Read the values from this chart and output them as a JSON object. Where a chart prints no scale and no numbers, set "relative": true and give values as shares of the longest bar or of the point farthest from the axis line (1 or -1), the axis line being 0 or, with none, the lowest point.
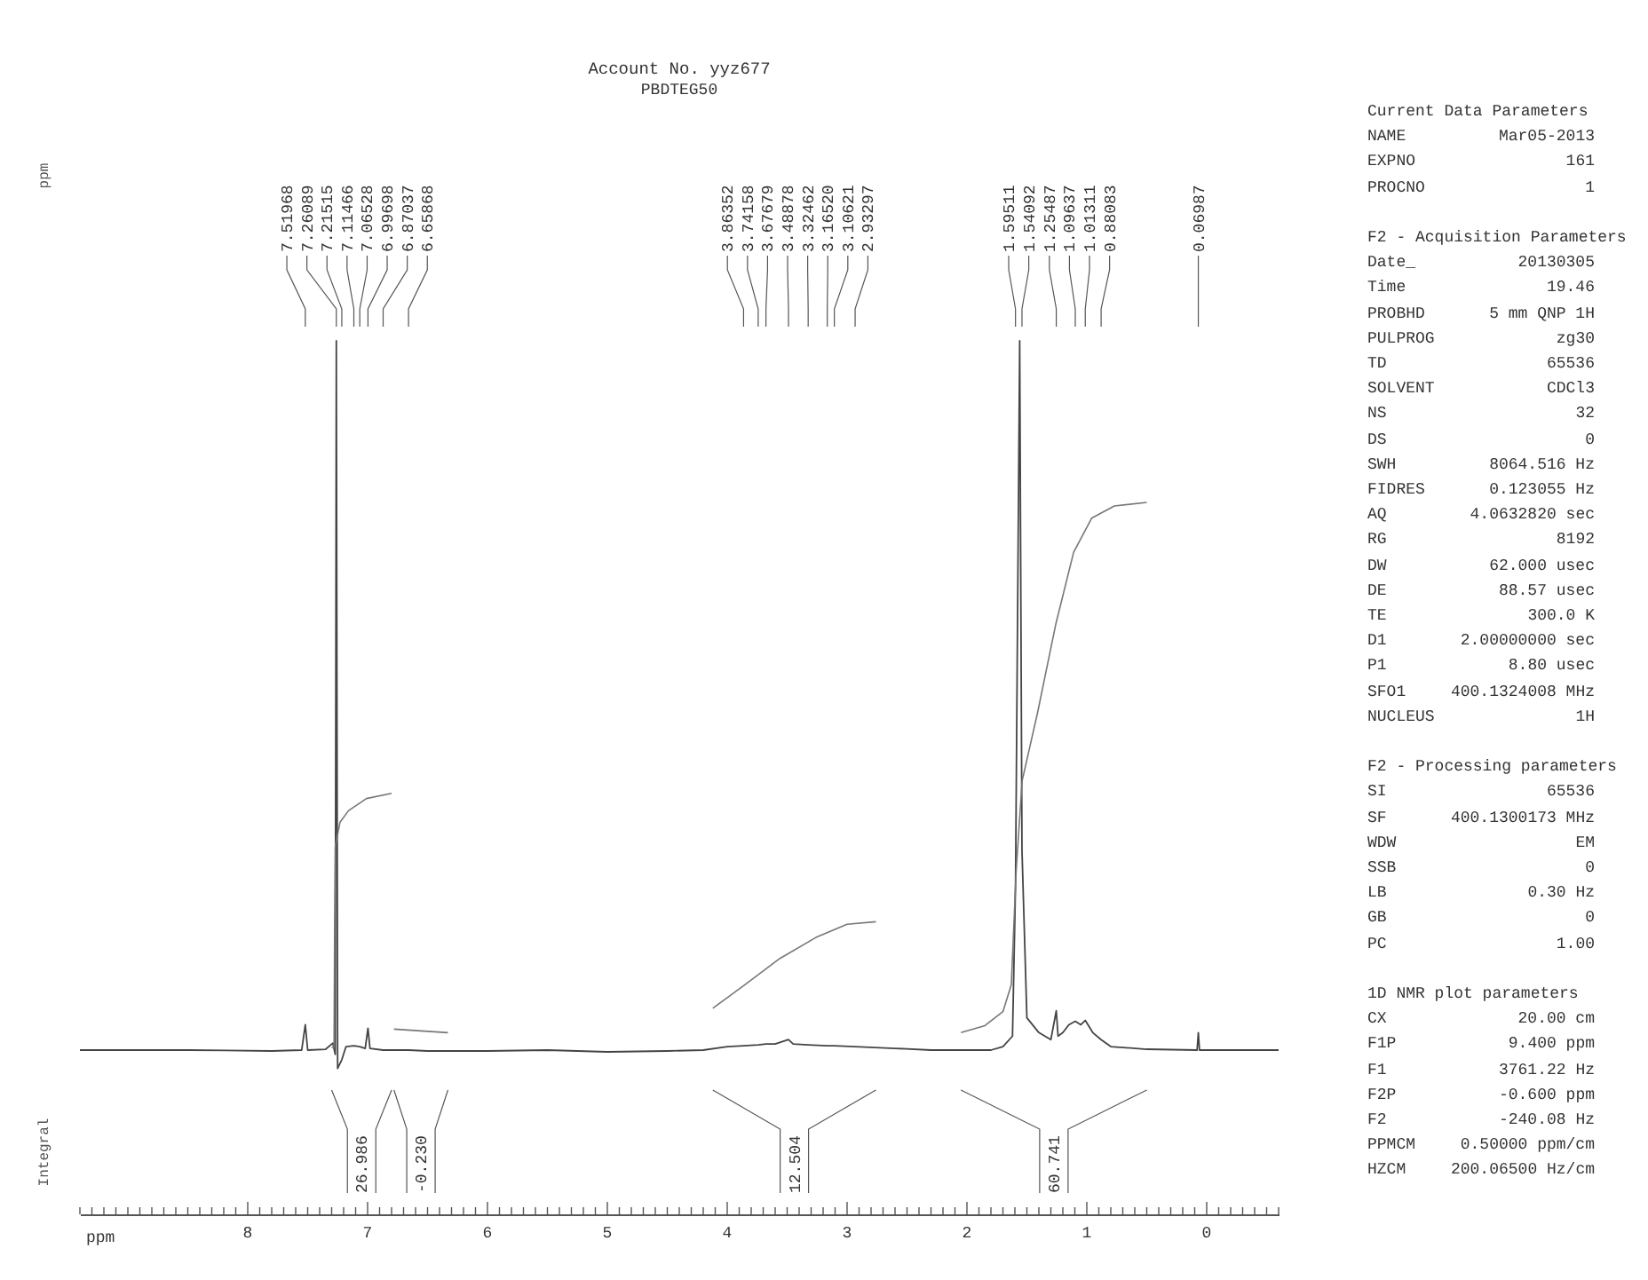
{
  "chart_data": {
    "type": "line",
    "relative": true,
    "title": "Account No. yyz677",
    "subtitle": "PBDTEG50",
    "xlabel": "ppm",
    "xlim": [
      9.4,
      -0.6
    ],
    "xticks": [
      {
        "value": 9.4,
        "label": null
      },
      {
        "value": 9.3,
        "label": null
      },
      {
        "value": 9.2,
        "label": null
      },
      {
        "value": 9.1,
        "label": null
      },
      {
        "value": 9,
        "label": null
      },
      {
        "value": 8.9,
        "label": null
      },
      {
        "value": 8.8,
        "label": null
      },
      {
        "value": 8.7,
        "label": null
      },
      {
        "value": 8.6,
        "label": null
      },
      {
        "value": 8.5,
        "label": null
      },
      {
        "value": 8.4,
        "label": null
      },
      {
        "value": 8.3,
        "label": null
      },
      {
        "value": 8.2,
        "label": null
      },
      {
        "value": 8.1,
        "label": null
      },
      8,
      {
        "value": 7.9,
        "label": null
      },
      {
        "value": 7.8,
        "label": null
      },
      {
        "value": 7.7,
        "label": null
      },
      {
        "value": 7.6,
        "label": null
      },
      {
        "value": 7.5,
        "label": null
      },
      {
        "value": 7.4,
        "label": null
      },
      {
        "value": 7.3,
        "label": null
      },
      {
        "value": 7.2,
        "label": null
      },
      {
        "value": 7.1,
        "label": null
      },
      7,
      {
        "value": 6.9,
        "label": null
      },
      {
        "value": 6.8,
        "label": null
      },
      {
        "value": 6.7,
        "label": null
      },
      {
        "value": 6.6,
        "label": null
      },
      {
        "value": 6.5,
        "label": null
      },
      {
        "value": 6.4,
        "label": null
      },
      {
        "value": 6.3,
        "label": null
      },
      {
        "value": 6.2,
        "label": null
      },
      {
        "value": 6.1,
        "label": null
      },
      6,
      {
        "value": 5.9,
        "label": null
      },
      {
        "value": 5.8,
        "label": null
      },
      {
        "value": 5.7,
        "label": null
      },
      {
        "value": 5.6,
        "label": null
      },
      {
        "value": 5.5,
        "label": null
      },
      {
        "value": 5.4,
        "label": null
      },
      {
        "value": 5.3,
        "label": null
      },
      {
        "value": 5.2,
        "label": null
      },
      {
        "value": 5.1,
        "label": null
      },
      5,
      {
        "value": 4.9,
        "label": null
      },
      {
        "value": 4.8,
        "label": null
      },
      {
        "value": 4.7,
        "label": null
      },
      {
        "value": 4.6,
        "label": null
      },
      {
        "value": 4.5,
        "label": null
      },
      {
        "value": 4.4,
        "label": null
      },
      {
        "value": 4.3,
        "label": null
      },
      {
        "value": 4.2,
        "label": null
      },
      {
        "value": 4.1,
        "label": null
      },
      4,
      {
        "value": 3.9,
        "label": null
      },
      {
        "value": 3.8,
        "label": null
      },
      {
        "value": 3.7,
        "label": null
      },
      {
        "value": 3.6,
        "label": null
      },
      {
        "value": 3.5,
        "label": null
      },
      {
        "value": 3.4,
        "label": null
      },
      {
        "value": 3.3,
        "label": null
      },
      {
        "value": 3.2,
        "label": null
      },
      {
        "value": 3.1,
        "label": null
      },
      3,
      {
        "value": 2.9,
        "label": null
      },
      {
        "value": 2.8,
        "label": null
      },
      {
        "value": 2.7,
        "label": null
      },
      {
        "value": 2.6,
        "label": null
      },
      {
        "value": 2.5,
        "label": null
      },
      {
        "value": 2.4,
        "label": null
      },
      {
        "value": 2.3,
        "label": null
      },
      {
        "value": 2.2,
        "label": null
      },
      {
        "value": 2.1,
        "label": null
      },
      2,
      {
        "value": 1.9,
        "label": null
      },
      {
        "value": 1.8,
        "label": null
      },
      {
        "value": 1.7,
        "label": null
      },
      {
        "value": 1.6,
        "label": null
      },
      {
        "value": 1.5,
        "label": null
      },
      {
        "value": 1.4,
        "label": null
      },
      {
        "value": 1.3,
        "label": null
      },
      {
        "value": 1.2,
        "label": null
      },
      {
        "value": 1.1,
        "label": null
      },
      1,
      {
        "value": 0.9,
        "label": null
      },
      {
        "value": 0.8,
        "label": null
      },
      {
        "value": 0.7,
        "label": null
      },
      {
        "value": 0.6,
        "label": null
      },
      {
        "value": 0.5,
        "label": null
      },
      {
        "value": 0.4,
        "label": null
      },
      {
        "value": 0.3,
        "label": null
      },
      {
        "value": 0.2,
        "label": null
      },
      {
        "value": 0.1,
        "label": null
      },
      0,
      {
        "value": -0.1,
        "label": null
      },
      {
        "value": -0.2,
        "label": null
      },
      {
        "value": -0.3,
        "label": null
      },
      {
        "value": -0.4,
        "label": null
      },
      {
        "value": -0.5,
        "label": null
      },
      {
        "value": -0.6,
        "label": null
      }
    ],
    "series": [
      {
        "color": "#444444",
        "x": [
          9.4,
          8.5,
          7.8,
          7.55,
          7.51968,
          7.5,
          7.35,
          7.29,
          7.27,
          7.26089,
          7.25,
          7.21515,
          7.18,
          7.11466,
          7.06528,
          7.02,
          6.99698,
          6.98,
          6.87037,
          6.8,
          6.65868,
          6.5,
          6.0,
          5.5,
          5.0,
          4.5,
          4.2,
          4.0,
          3.86352,
          3.74158,
          3.67679,
          3.6,
          3.48878,
          3.45,
          3.32462,
          3.1652,
          3.10621,
          2.93297,
          2.6,
          2.3,
          2.1,
          1.95,
          1.8,
          1.7,
          1.62,
          1.59511,
          1.56,
          1.54092,
          1.5,
          1.4,
          1.3,
          1.25487,
          1.24,
          1.2,
          1.15,
          1.09637,
          1.05,
          1.01311,
          0.95,
          0.88083,
          0.8,
          0.5,
          0.08,
          0.06987,
          0.06,
          -0.3,
          -0.6
        ],
        "values": [
          0.188,
          0.188,
          0.187,
          0.188,
          0.217,
          0.188,
          0.189,
          0.196,
          0.183,
          1,
          0.167,
          0.177,
          0.192,
          0.193,
          0.192,
          0.19,
          0.213,
          0.19,
          0.188,
          0.188,
          0.188,
          0.187,
          0.187,
          0.188,
          0.186,
          0.187,
          0.188,
          0.192,
          0.193,
          0.194,
          0.195,
          0.195,
          0.2,
          0.195,
          0.194,
          0.193,
          0.193,
          0.192,
          0.19,
          0.188,
          0.188,
          0.188,
          0.188,
          0.192,
          0.204,
          0.375,
          1,
          0.417,
          0.225,
          0.208,
          0.2,
          0.233,
          0.204,
          0.208,
          0.217,
          0.221,
          0.217,
          0.222,
          0.208,
          0.2,
          0.192,
          0.189,
          0.188,
          0.208,
          0.188,
          0.188,
          0.188
        ]
      },
      {
        "color": "#777777",
        "x": [
          7.3,
          7.28,
          7.275,
          7.27,
          7.23,
          7.16,
          7.01,
          6.8
        ],
        "values": [
          0.191,
          0.191,
          0.333,
          0.421,
          0.449,
          0.462,
          0.476,
          0.482
        ]
      },
      {
        "color": "#777777",
        "x": [
          6.78,
          6.33
        ],
        "values": [
          0.212,
          0.208
        ]
      },
      {
        "color": "#777777",
        "x": [
          4.12,
          3.85,
          3.56,
          3.26,
          3.0,
          2.76
        ],
        "values": [
          0.236,
          0.263,
          0.293,
          0.317,
          0.332,
          0.335
        ]
      },
      {
        "color": "#777777",
        "x": [
          2.05,
          1.85,
          1.7,
          1.63,
          1.59,
          1.54,
          1.41,
          1.26,
          1.11,
          0.96,
          0.77,
          0.5
        ],
        "values": [
          0.208,
          0.216,
          0.232,
          0.263,
          0.392,
          0.496,
          0.575,
          0.675,
          0.758,
          0.797,
          0.811,
          0.815
        ]
      }
    ],
    "annotations": [
      {
        "text": "7.51968",
        "x": 7.51968
      },
      {
        "text": "7.26089",
        "x": 7.26089
      },
      {
        "text": "7.21515",
        "x": 7.21515
      },
      {
        "text": "7.11466",
        "x": 7.11466
      },
      {
        "text": "7.06528",
        "x": 7.06528
      },
      {
        "text": "6.99698",
        "x": 6.99698
      },
      {
        "text": "6.87037",
        "x": 6.87037
      },
      {
        "text": "6.65868",
        "x": 6.65868
      },
      {
        "text": "3.86352",
        "x": 3.86352
      },
      {
        "text": "3.74158",
        "x": 3.74158
      },
      {
        "text": "3.67679",
        "x": 3.67679
      },
      {
        "text": "3.48878",
        "x": 3.48878
      },
      {
        "text": "3.32462",
        "x": 3.32462
      },
      {
        "text": "3.16520",
        "x": 3.1652
      },
      {
        "text": "3.10621",
        "x": 3.10621
      },
      {
        "text": "2.93297",
        "x": 2.93297
      },
      {
        "text": "1.59511",
        "x": 1.59511
      },
      {
        "text": "1.54092",
        "x": 1.54092
      },
      {
        "text": "1.25487",
        "x": 1.25487
      },
      {
        "text": "1.09637",
        "x": 1.09637
      },
      {
        "text": "1.01311",
        "x": 1.01311
      },
      {
        "text": "0.88083",
        "x": 0.88083
      },
      {
        "text": "0.06987",
        "x": 0.06987
      },
      "26.986",
      "-0.230",
      "12.504",
      "60.741",
      "ppm",
      "Integral",
      "Current Data Parameters",
      "NAME\tMar05-2013",
      "EXPNO\t161",
      "PROCNO\t1",
      "F2 - Acquisition Parameters",
      "Date_\t20130305",
      "Time\t19.46",
      "PROBHD\t5 mm QNP 1H",
      "PULPROG\tzg30",
      "TD\t65536",
      "SOLVENT\tCDCl3",
      "NS\t32",
      "DS\t0",
      "SWH\t8064.516 Hz",
      "FIDRES\t0.123055 Hz",
      "AQ\t4.0632820 sec",
      "RG\t8192",
      "DW\t62.000 usec",
      "DE\t88.57 usec",
      "TE\t300.0 K",
      "D1\t2.00000000 sec",
      "P1\t8.80 usec",
      "SFO1\t400.1324008 MHz",
      "NUCLEUS\t1H",
      "F2 - Processing parameters",
      "SI\t65536",
      "SF\t400.1300173 MHz",
      "WDW\tEM",
      "SSB\t0",
      "LB\t0.30 Hz",
      "GB\t0",
      "PC\t1.00",
      "1D NMR plot parameters",
      "CX\t20.00 cm",
      "F1P\t9.400 ppm",
      "F1\t3761.22 Hz",
      "F2P\t-0.600 ppm",
      "F2\t-240.08 Hz",
      "PPMCM\t0.50000 ppm/cm",
      "HZCM\t200.06500 Hz/cm"
    ]
  }
}
